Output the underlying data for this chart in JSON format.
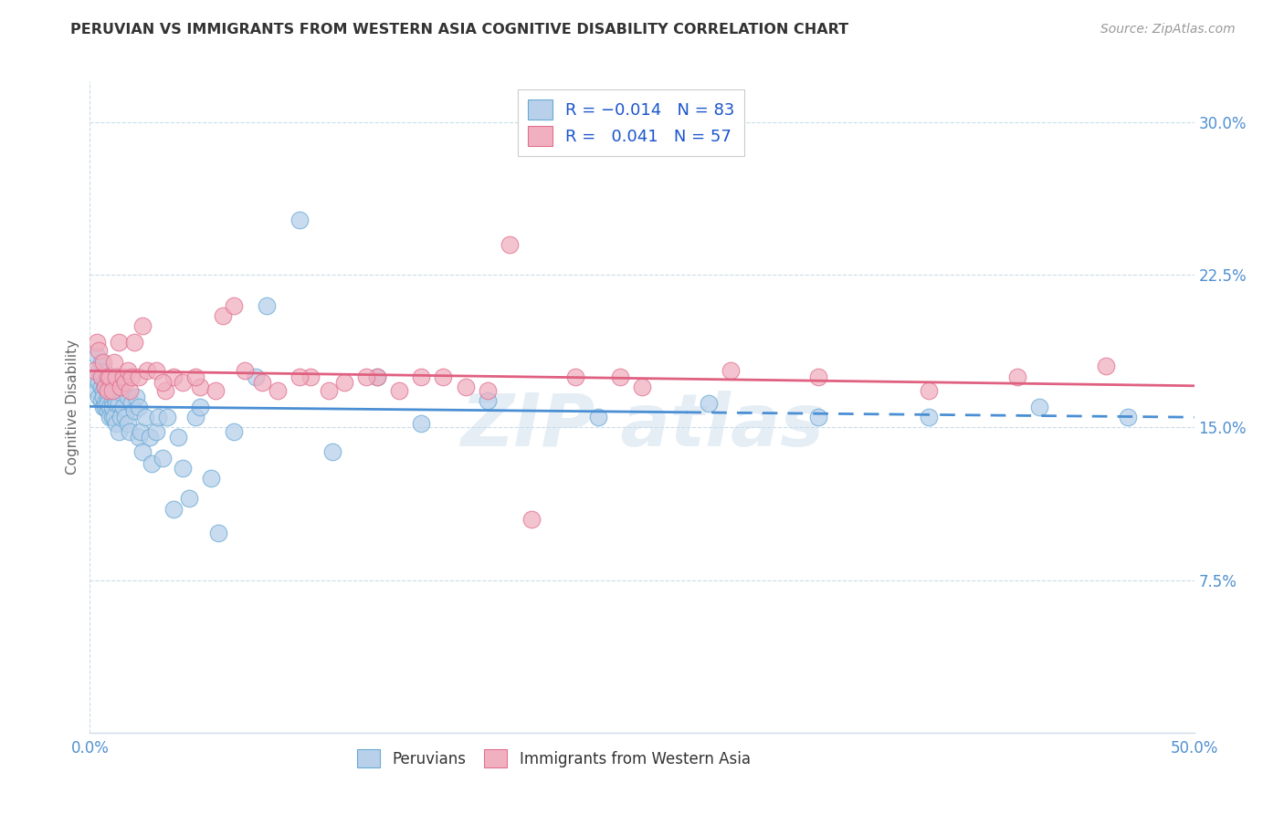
{
  "title": "PERUVIAN VS IMMIGRANTS FROM WESTERN ASIA COGNITIVE DISABILITY CORRELATION CHART",
  "source": "Source: ZipAtlas.com",
  "ylabel": "Cognitive Disability",
  "xlim": [
    0.0,
    0.5
  ],
  "ylim": [
    0.0,
    0.32
  ],
  "xtick_positions": [
    0.0,
    0.1,
    0.2,
    0.3,
    0.4,
    0.5
  ],
  "xticklabels": [
    "0.0%",
    "",
    "",
    "",
    "",
    "50.0%"
  ],
  "yticks_right": [
    0.075,
    0.15,
    0.225,
    0.3
  ],
  "ytick_labels_right": [
    "7.5%",
    "15.0%",
    "22.5%",
    "30.0%"
  ],
  "blue_fill": "#b8d0ea",
  "blue_edge": "#6aaad4",
  "pink_fill": "#f0b0c0",
  "pink_edge": "#e07090",
  "blue_line": "#4a8fd4",
  "pink_line": "#e06080",
  "grid_color": "#c8dcea",
  "tick_color": "#5090d0",
  "legend_r1": "R = -0.014",
  "legend_n1": "N = 83",
  "legend_r2": "R =  0.041",
  "legend_n2": "N = 57",
  "peruvians_x": [
    0.002,
    0.003,
    0.003,
    0.004,
    0.004,
    0.004,
    0.005,
    0.005,
    0.005,
    0.005,
    0.006,
    0.006,
    0.006,
    0.006,
    0.007,
    0.007,
    0.007,
    0.007,
    0.007,
    0.008,
    0.008,
    0.008,
    0.008,
    0.009,
    0.009,
    0.009,
    0.009,
    0.009,
    0.01,
    0.01,
    0.01,
    0.01,
    0.011,
    0.011,
    0.011,
    0.012,
    0.012,
    0.012,
    0.013,
    0.013,
    0.014,
    0.014,
    0.015,
    0.016,
    0.017,
    0.017,
    0.018,
    0.019,
    0.02,
    0.021,
    0.022,
    0.022,
    0.023,
    0.024,
    0.025,
    0.027,
    0.028,
    0.03,
    0.031,
    0.033,
    0.035,
    0.038,
    0.04,
    0.042,
    0.045,
    0.048,
    0.05,
    0.055,
    0.058,
    0.065,
    0.075,
    0.08,
    0.095,
    0.11,
    0.13,
    0.15,
    0.18,
    0.23,
    0.28,
    0.33,
    0.38,
    0.43,
    0.47
  ],
  "peruvians_y": [
    0.175,
    0.185,
    0.168,
    0.172,
    0.165,
    0.178,
    0.17,
    0.163,
    0.175,
    0.182,
    0.16,
    0.168,
    0.175,
    0.165,
    0.162,
    0.17,
    0.177,
    0.16,
    0.173,
    0.158,
    0.166,
    0.173,
    0.162,
    0.16,
    0.168,
    0.175,
    0.155,
    0.17,
    0.155,
    0.163,
    0.17,
    0.16,
    0.168,
    0.155,
    0.165,
    0.152,
    0.162,
    0.172,
    0.148,
    0.162,
    0.155,
    0.167,
    0.16,
    0.155,
    0.152,
    0.165,
    0.148,
    0.162,
    0.158,
    0.165,
    0.16,
    0.145,
    0.148,
    0.138,
    0.155,
    0.145,
    0.132,
    0.148,
    0.155,
    0.135,
    0.155,
    0.11,
    0.145,
    0.13,
    0.115,
    0.155,
    0.16,
    0.125,
    0.098,
    0.148,
    0.175,
    0.21,
    0.252,
    0.138,
    0.175,
    0.152,
    0.163,
    0.155,
    0.162,
    0.155,
    0.155,
    0.16,
    0.155
  ],
  "western_asia_x": [
    0.002,
    0.003,
    0.004,
    0.005,
    0.006,
    0.007,
    0.008,
    0.008,
    0.009,
    0.01,
    0.011,
    0.012,
    0.013,
    0.014,
    0.015,
    0.016,
    0.017,
    0.018,
    0.019,
    0.02,
    0.022,
    0.024,
    0.026,
    0.03,
    0.034,
    0.038,
    0.042,
    0.05,
    0.06,
    0.07,
    0.085,
    0.1,
    0.115,
    0.13,
    0.15,
    0.17,
    0.19,
    0.22,
    0.25,
    0.29,
    0.33,
    0.38,
    0.42,
    0.46,
    0.033,
    0.048,
    0.057,
    0.065,
    0.078,
    0.095,
    0.108,
    0.125,
    0.14,
    0.16,
    0.18,
    0.2,
    0.24
  ],
  "western_asia_y": [
    0.178,
    0.192,
    0.188,
    0.175,
    0.182,
    0.17,
    0.175,
    0.168,
    0.175,
    0.168,
    0.182,
    0.175,
    0.192,
    0.17,
    0.175,
    0.172,
    0.178,
    0.168,
    0.175,
    0.192,
    0.175,
    0.2,
    0.178,
    0.178,
    0.168,
    0.175,
    0.172,
    0.17,
    0.205,
    0.178,
    0.168,
    0.175,
    0.172,
    0.175,
    0.175,
    0.17,
    0.24,
    0.175,
    0.17,
    0.178,
    0.175,
    0.168,
    0.175,
    0.18,
    0.172,
    0.175,
    0.168,
    0.21,
    0.172,
    0.175,
    0.168,
    0.175,
    0.168,
    0.175,
    0.168,
    0.105,
    0.175
  ]
}
